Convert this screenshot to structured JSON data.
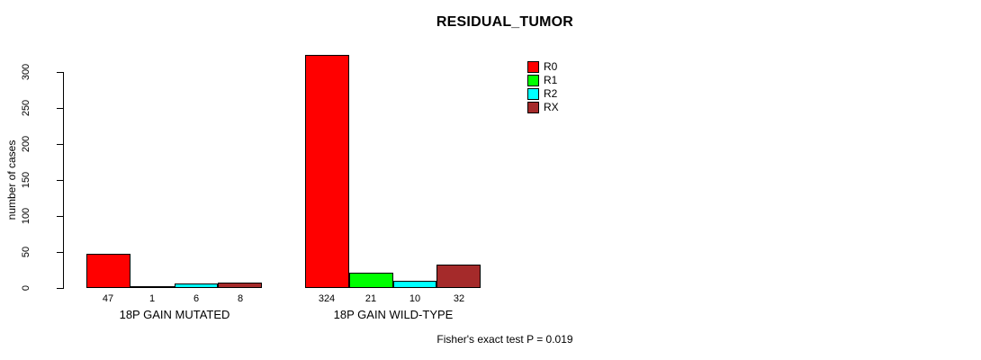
{
  "title": "RESIDUAL_TUMOR",
  "footer_text": "Fisher's exact test P = 0.019",
  "colors": {
    "R0": "#FF0000",
    "R1": "#00FF00",
    "R2": "#00FFFF",
    "RX": "#A52A2A",
    "axis": "#000000",
    "background": "#FFFFFF"
  },
  "legend": {
    "position": "right-top",
    "items": [
      {
        "label": "R0",
        "color": "#FF0000"
      },
      {
        "label": "R1",
        "color": "#00FF00"
      },
      {
        "label": "R2",
        "color": "#00FFFF"
      },
      {
        "label": "RX",
        "color": "#A52A2A"
      }
    ]
  },
  "chart_data": {
    "type": "bar",
    "grouped": true,
    "title": "RESIDUAL_TUMOR",
    "xlabel": "",
    "ylabel": "number of cases",
    "annotation": "Fisher's exact test P = 0.019",
    "categories": [
      "18P GAIN MUTATED",
      "18P GAIN WILD-TYPE"
    ],
    "series": [
      {
        "name": "R0",
        "color": "#FF0000",
        "values": [
          47,
          324
        ]
      },
      {
        "name": "R1",
        "color": "#00FF00",
        "values": [
          1,
          21
        ]
      },
      {
        "name": "R2",
        "color": "#00FFFF",
        "values": [
          6,
          10
        ]
      },
      {
        "name": "RX",
        "color": "#A52A2A",
        "values": [
          8,
          32
        ]
      }
    ],
    "bar_value_labels": [
      [
        47,
        1,
        6,
        8
      ],
      [
        324,
        21,
        10,
        32
      ]
    ],
    "yticks": [
      0,
      50,
      100,
      150,
      200,
      250,
      300
    ],
    "ylim": [
      0,
      300
    ],
    "grid": false,
    "legend_position": "right-top"
  }
}
